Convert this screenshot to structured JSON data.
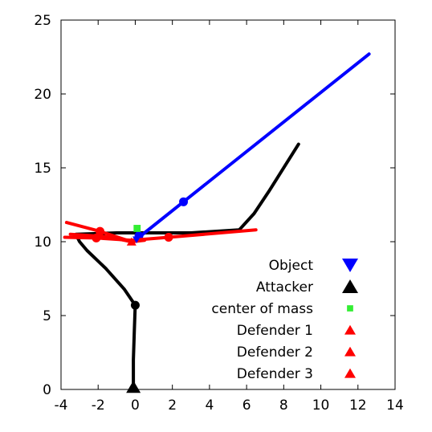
{
  "chart_data": {
    "type": "line",
    "xlim": [
      -4,
      14
    ],
    "ylim": [
      0,
      25
    ],
    "xticks": [
      -4,
      -2,
      0,
      2,
      4,
      6,
      8,
      10,
      12,
      14
    ],
    "yticks": [
      0,
      5,
      10,
      15,
      20,
      25
    ],
    "grid": false,
    "legend_position": "bottom-right",
    "series": [
      {
        "name": "Object",
        "color": "#0000ff",
        "marker": "triangle-down",
        "points": [
          [
            0.2,
            10.3
          ],
          [
            2.6,
            12.7
          ],
          [
            12.6,
            22.7
          ]
        ],
        "dots": [
          [
            2.6,
            12.7
          ],
          [
            0.2,
            10.4
          ]
        ]
      },
      {
        "name": "Attacker",
        "color": "#000000",
        "marker": "triangle-up",
        "segments": [
          [
            [
              -0.1,
              0.0
            ],
            [
              -0.1,
              2.0
            ],
            [
              -0.05,
              4.0
            ],
            [
              0.0,
              5.7
            ],
            [
              -0.6,
              6.8
            ],
            [
              -1.6,
              8.2
            ],
            [
              -2.6,
              9.4
            ],
            [
              -3.0,
              10.0
            ],
            [
              -3.2,
              10.5
            ],
            [
              -1.0,
              10.6
            ],
            [
              1.0,
              10.6
            ],
            [
              3.0,
              10.6
            ],
            [
              5.6,
              10.8
            ],
            [
              6.4,
              11.9
            ],
            [
              7.2,
              13.4
            ],
            [
              8.1,
              15.2
            ],
            [
              8.8,
              16.6
            ]
          ]
        ],
        "dots": [
          [
            0.0,
            5.7
          ]
        ]
      },
      {
        "name": "center of mass",
        "color": "#33ee33",
        "marker": "square",
        "points": [
          [
            0.1,
            10.9
          ]
        ]
      },
      {
        "name": "Defender 1",
        "color": "#ff0000",
        "marker": "triangle-up",
        "points": [
          [
            -3.7,
            11.3
          ],
          [
            -1.9,
            10.7
          ],
          [
            -0.2,
            10.0
          ]
        ],
        "dots": [
          [
            -1.9,
            10.7
          ]
        ]
      },
      {
        "name": "Defender 2",
        "color": "#ff0000",
        "marker": "triangle-up",
        "points": [
          [
            -3.8,
            10.3
          ],
          [
            -2.1,
            10.25
          ],
          [
            -0.2,
            10.1
          ],
          [
            1.8,
            10.3
          ],
          [
            6.5,
            10.8
          ]
        ],
        "dots": [
          [
            -2.1,
            10.25
          ],
          [
            1.8,
            10.3
          ]
        ]
      },
      {
        "name": "Defender 3",
        "color": "#ff0000",
        "marker": "triangle-up",
        "points": [
          [
            -3.5,
            10.5
          ],
          [
            -1.6,
            10.35
          ],
          [
            -0.2,
            10.0
          ],
          [
            0.5,
            10.1
          ]
        ],
        "dots": []
      }
    ]
  }
}
